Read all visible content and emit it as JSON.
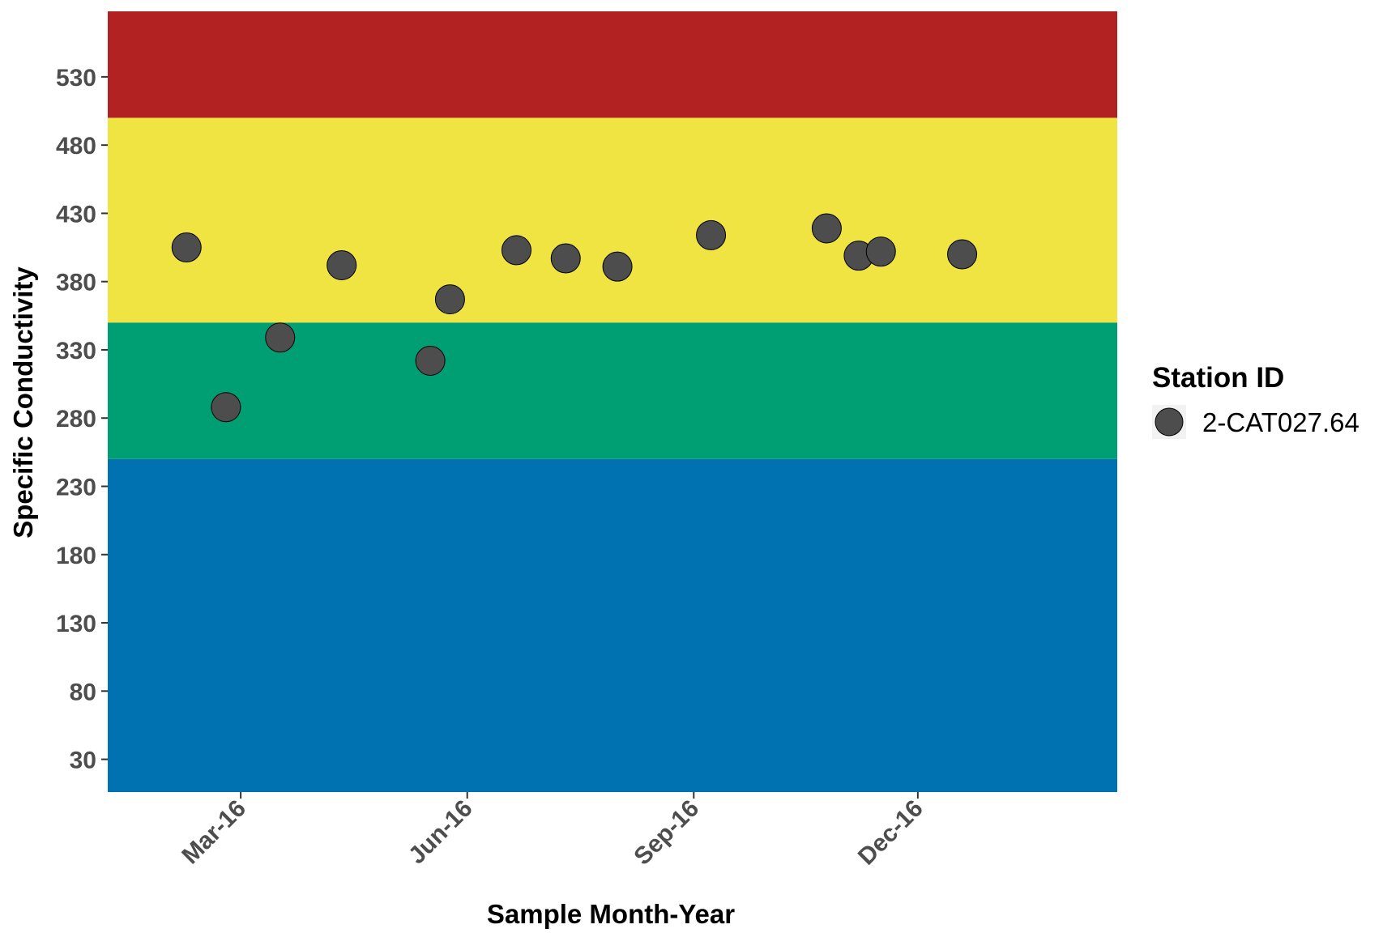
{
  "chart_data": {
    "type": "scatter",
    "title": "",
    "xlabel": "Sample Month-Year",
    "ylabel": "Specific Conductivity",
    "x_type": "date",
    "xlim": [
      "2016-01-07",
      "2017-02-20"
    ],
    "ylim": [
      6,
      578
    ],
    "y_ticks": [
      30,
      80,
      130,
      180,
      230,
      280,
      330,
      380,
      430,
      480,
      530
    ],
    "x_ticks": [
      {
        "date": "2016-03-01",
        "label": "Mar-16"
      },
      {
        "date": "2016-06-01",
        "label": "Jun-16"
      },
      {
        "date": "2016-09-01",
        "label": "Sep-16"
      },
      {
        "date": "2016-12-01",
        "label": "Dec-16"
      }
    ],
    "bands": [
      {
        "from": 6,
        "to": 250,
        "color": "#0072B2"
      },
      {
        "from": 250,
        "to": 350,
        "color": "#009E73"
      },
      {
        "from": 350,
        "to": 500,
        "color": "#F0E442"
      },
      {
        "from": 500,
        "to": 578,
        "color": "#B22222"
      }
    ],
    "grid": false,
    "legend": {
      "title": "Station ID",
      "position": "right"
    },
    "series": [
      {
        "name": "2-CAT027.64",
        "color": "#4d4d4d",
        "points": [
          {
            "x": "2016-02-08",
            "y": 405
          },
          {
            "x": "2016-02-24",
            "y": 288
          },
          {
            "x": "2016-03-17",
            "y": 339
          },
          {
            "x": "2016-04-11",
            "y": 392
          },
          {
            "x": "2016-05-17",
            "y": 322
          },
          {
            "x": "2016-05-25",
            "y": 367
          },
          {
            "x": "2016-06-21",
            "y": 403
          },
          {
            "x": "2016-07-11",
            "y": 397
          },
          {
            "x": "2016-08-01",
            "y": 391
          },
          {
            "x": "2016-09-08",
            "y": 414
          },
          {
            "x": "2016-10-25",
            "y": 419
          },
          {
            "x": "2016-11-07",
            "y": 399
          },
          {
            "x": "2016-11-16",
            "y": 402
          },
          {
            "x": "2016-12-19",
            "y": 400
          }
        ]
      }
    ]
  }
}
